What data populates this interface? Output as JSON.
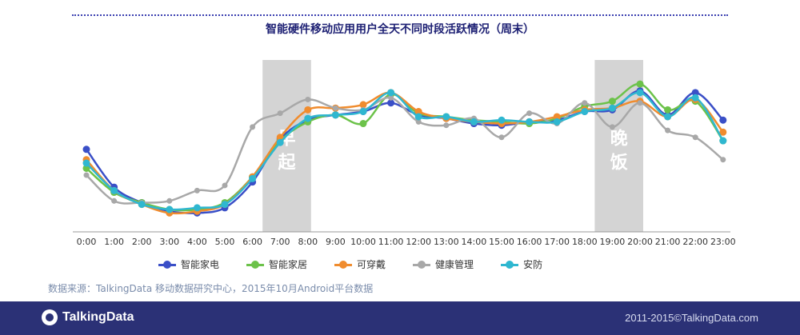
{
  "title": "智能硬件移动应用用户全天不同时段活跃情况（周末）",
  "chart_data": {
    "type": "line",
    "title": "智能硬件移动应用用户全天不同时段活跃情况（周末）",
    "categories": [
      "0:00",
      "1:00",
      "2:00",
      "3:00",
      "4:00",
      "5:00",
      "6:00",
      "7:00",
      "8:00",
      "9:00",
      "10:00",
      "11:00",
      "12:00",
      "13:00",
      "14:00",
      "15:00",
      "16:00",
      "17:00",
      "18:00",
      "19:00",
      "20:00",
      "21:00",
      "22:00",
      "23:00"
    ],
    "ylim": [
      0,
      100
    ],
    "grid": false,
    "legend_position": "bottom",
    "series": [
      {
        "name": "智能家电",
        "color": "#3a4fc7",
        "values": [
          48,
          26,
          17,
          12,
          11,
          14,
          29,
          54,
          65,
          68,
          70,
          75,
          68,
          66,
          63,
          62,
          64,
          65,
          70,
          71,
          82,
          68,
          81,
          65
        ]
      },
      {
        "name": "智能家居",
        "color": "#6cc24a",
        "values": [
          37,
          23,
          17,
          13,
          13,
          17,
          32,
          53,
          64,
          68,
          63,
          80,
          69,
          67,
          65,
          64,
          63,
          66,
          73,
          76,
          86,
          71,
          76,
          53
        ]
      },
      {
        "name": "可穿戴",
        "color": "#f08c2e",
        "values": [
          42,
          24,
          16,
          11,
          12,
          16,
          32,
          55,
          71,
          72,
          74,
          81,
          70,
          66,
          64,
          63,
          64,
          67,
          71,
          72,
          76,
          67,
          77,
          58
        ]
      },
      {
        "name": "健康管理",
        "color": "#a8a8a8",
        "values": [
          33,
          18,
          17,
          18,
          24,
          27,
          61,
          69,
          77,
          72,
          71,
          78,
          64,
          62,
          66,
          55,
          69,
          63,
          75,
          61,
          75,
          59,
          55,
          42
        ]
      },
      {
        "name": "安防",
        "color": "#2fb7d0",
        "values": [
          40,
          24,
          16,
          13,
          14,
          16,
          31,
          52,
          66,
          68,
          70,
          81,
          67,
          67,
          64,
          65,
          64,
          64,
          70,
          72,
          81,
          67,
          78,
          53
        ]
      }
    ],
    "annotations": [
      {
        "label": "早起",
        "from": "7:00",
        "to": "8:00"
      },
      {
        "label": "晚饭",
        "from": "19:00",
        "to": "20:00"
      }
    ]
  },
  "source_note": "数据来源：TalkingData 移动数据研究中心，2015年10月Android平台数据",
  "footer": {
    "brand": "TalkingData",
    "copyright": "2011-2015©TalkingData.com"
  }
}
